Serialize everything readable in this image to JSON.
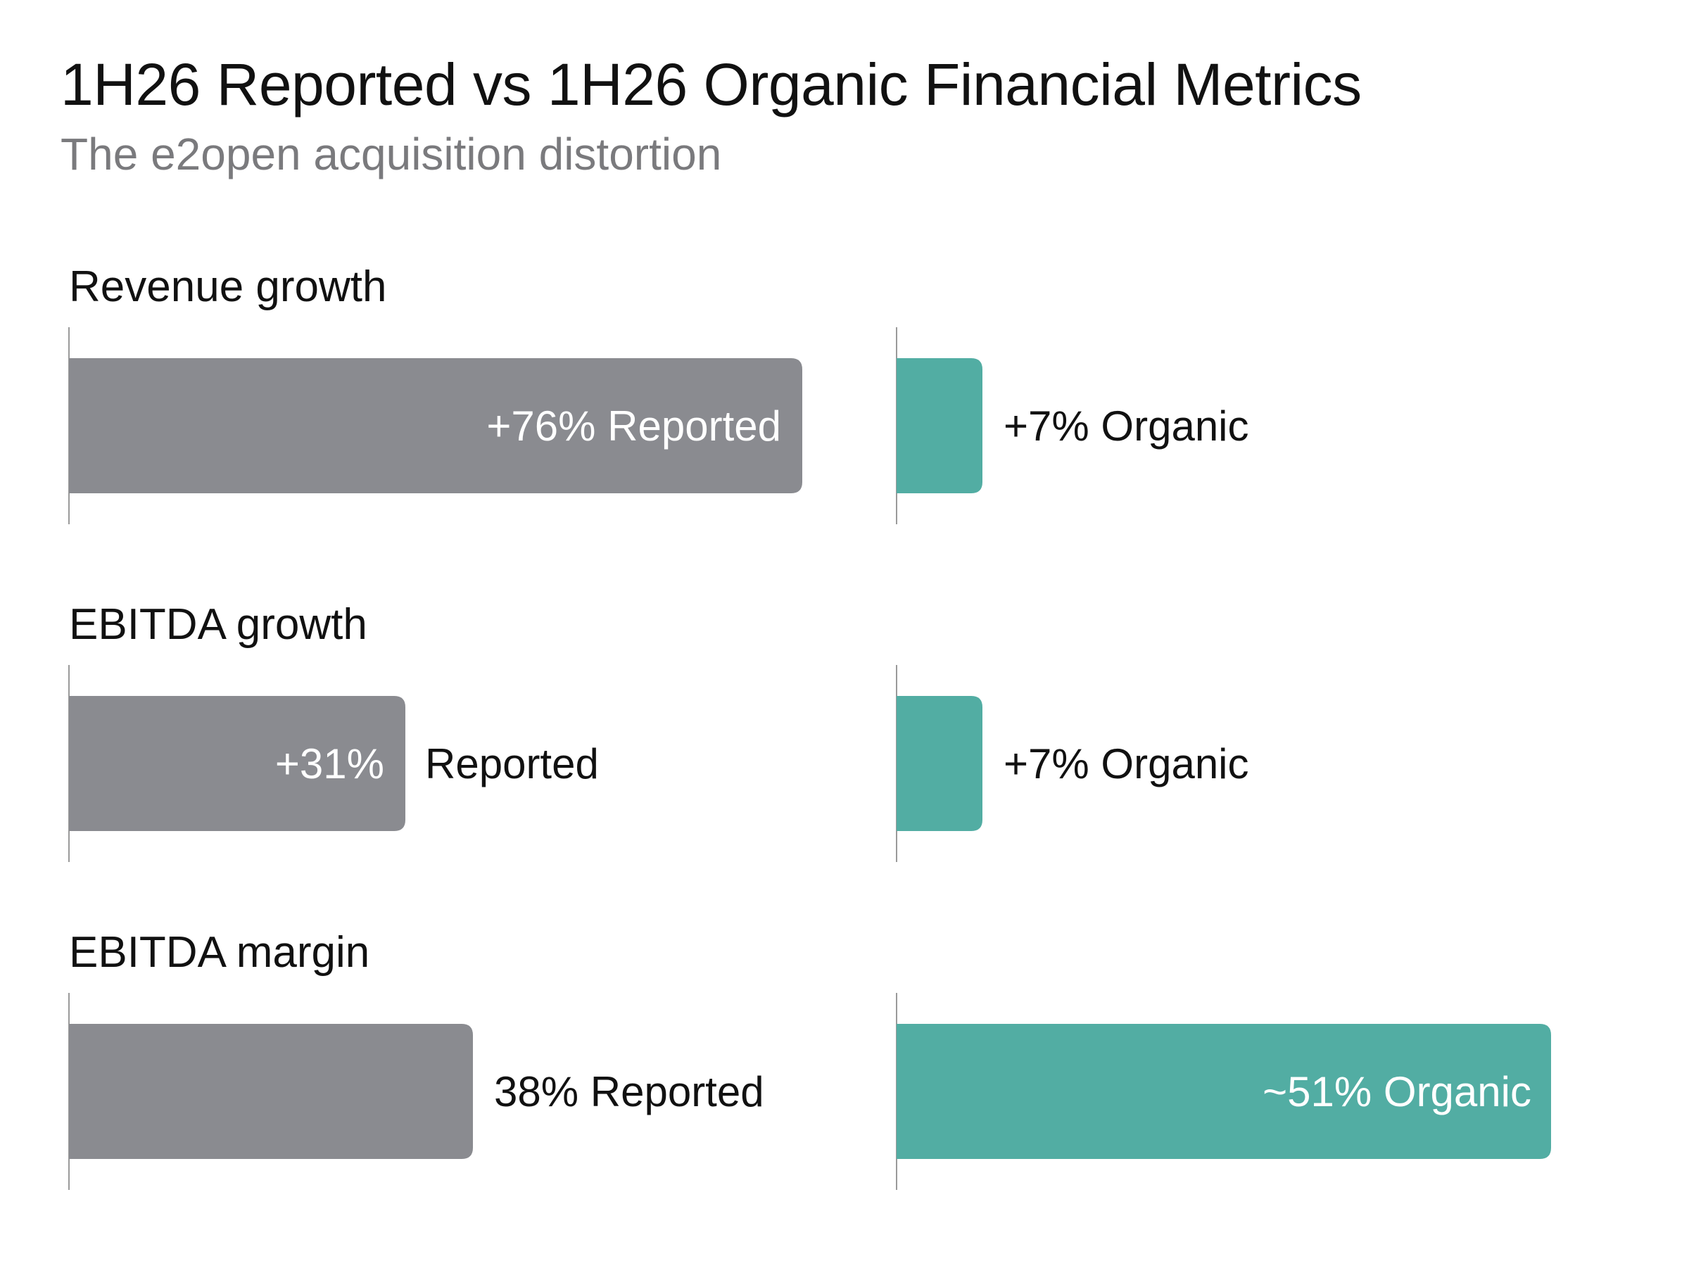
{
  "chart_data": {
    "type": "bar",
    "title": "1H26 Reported vs 1H26 Organic Financial Metrics",
    "subtitle": "The e2open acquisition distortion",
    "groups": [
      {
        "label": "Revenue growth",
        "reported": {
          "value": 76,
          "text": "+76% Reported"
        },
        "organic": {
          "value": 7,
          "text": "+7% Organic"
        }
      },
      {
        "label": "EBITDA growth",
        "reported": {
          "value": 31,
          "text": "+31%",
          "suffix": "Reported"
        },
        "organic": {
          "value": 7,
          "text": "+7% Organic"
        }
      },
      {
        "label": "EBITDA margin",
        "reported": {
          "value": 38,
          "text": "38% Reported"
        },
        "organic": {
          "value": 51,
          "text": "~51% Organic"
        }
      }
    ],
    "colors": {
      "reported": "#8a8b90",
      "organic": "#52ada3",
      "axis": "#9a9a9a"
    }
  }
}
